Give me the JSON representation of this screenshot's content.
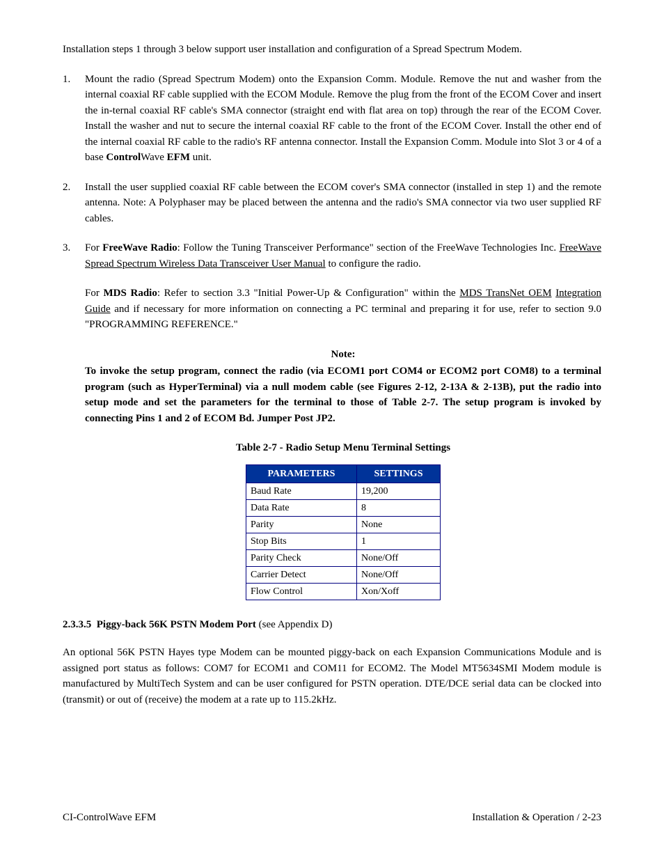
{
  "intro": "Installation steps 1 through 3 below support user installation and configuration of a Spread Spectrum Modem.",
  "steps": {
    "s1": {
      "text_a": "Mount the radio (Spread Spectrum Modem) onto the Expansion Comm. Module. Remove the nut and washer from the internal coaxial RF cable supplied with the ECOM Module. Remove the plug from the front of the ECOM Cover and insert the in-ternal coaxial RF cable's SMA connector (straight end with flat area on top) through the rear of the ECOM Cover. Install the washer and nut to secure the internal coaxial RF cable to the front of the ECOM Cover. Install the other end of the internal coaxial RF cable to the radio's RF antenna connector. Install the Expansion Comm. Module into Slot 3 or 4 of a base ",
      "bold1": "Control",
      "mid": "Wave ",
      "bold2": "EFM",
      "tail": " unit."
    },
    "s2": "Install the user supplied coaxial RF cable between the ECOM cover's SMA connector (installed in step 1) and the remote antenna. Note: A Polyphaser may be placed between the antenna and the radio's SMA connector via two user supplied RF cables.",
    "s3": {
      "p1_a": "For ",
      "p1_bold": "FreeWave Radio",
      "p1_b": ": Follow the Tuning Transceiver Performance\" section of the FreeWave Technologies Inc. ",
      "p1_ul": "FreeWave Spread Spectrum Wireless Data Transceiver User Manual",
      "p1_c": " to configure the radio.",
      "p2_a": "For ",
      "p2_bold": "MDS Radio",
      "p2_b": ": Refer to section 3.3 \"Initial Power-Up & Configuration\" within the ",
      "p2_ul1": "MDS TransNet OEM",
      "p2_sp": " ",
      "p2_ul2": "Integration Guide",
      "p2_c": " and if necessary for more information on connecting a PC terminal and preparing it for use, refer to section 9.0 \"PROGRAMMING REFERENCE.\""
    }
  },
  "note": {
    "title": "Note:",
    "body": "To invoke the setup program, connect the radio (via ECOM1 port COM4 or ECOM2 port COM8) to a terminal program (such as HyperTerminal) via a null modem cable (see Figures 2-12, 2-13A & 2-13B), put the radio into setup mode and set the parameters for the terminal to those of Table 2-7. The setup program is invoked by connecting Pins 1 and 2 of ECOM Bd. Jumper Post JP2."
  },
  "table": {
    "title": "Table 2-7 - Radio Setup Menu Terminal Settings",
    "header_bg": "#003399",
    "header_fg": "#ffffff",
    "border_color": "#000080",
    "col1_header": "PARAMETERS",
    "col2_header": "SETTINGS",
    "rows": {
      "r0p": "Baud Rate",
      "r0s": "19,200",
      "r1p": "Data Rate",
      "r1s": "8",
      "r2p": "Parity",
      "r2s": "None",
      "r3p": "Stop Bits",
      "r3s": "1",
      "r4p": "Parity Check",
      "r4s": "None/Off",
      "r5p": "Carrier Detect",
      "r5s": "None/Off",
      "r6p": "Flow Control",
      "r6s": "Xon/Xoff"
    }
  },
  "subsection": {
    "num": "2.3.3.5",
    "title": "Piggy-back 56K PSTN Modem Port",
    "paren": " (see Appendix D)",
    "body": "An optional 56K PSTN Hayes type Modem can be mounted piggy-back on each Expansion Communications Module and is assigned port status as follows: COM7 for ECOM1 and COM11 for ECOM2. The Model MT5634SMI Modem module is manufactured by MultiTech System and can be user configured for PSTN operation. DTE/DCE serial data can be clocked into (transmit) or out of (receive) the modem at a rate up to 115.2kHz."
  },
  "footer": {
    "left": "CI-ControlWave EFM",
    "right": "Installation & Operation / 2-23"
  }
}
